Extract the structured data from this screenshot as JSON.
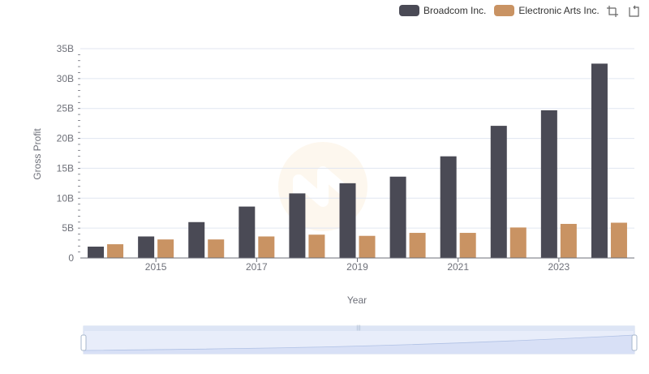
{
  "chart_data": {
    "type": "bar",
    "categories": [
      "2014",
      "2015",
      "2016",
      "2017",
      "2018",
      "2019",
      "2020",
      "2021",
      "2022",
      "2023",
      "2024"
    ],
    "x_tick_labels": [
      "2015",
      "2017",
      "2019",
      "2021",
      "2023"
    ],
    "series": [
      {
        "name": "Broadcom Inc.",
        "color": "#4a4a55",
        "values": [
          1.9,
          3.6,
          6.0,
          8.6,
          10.8,
          12.5,
          13.6,
          17.0,
          22.1,
          24.7,
          32.5
        ]
      },
      {
        "name": "Electronic Arts Inc.",
        "color": "#c99363",
        "values": [
          2.3,
          3.1,
          3.1,
          3.6,
          3.9,
          3.7,
          4.2,
          4.2,
          5.1,
          5.7,
          5.9
        ]
      }
    ],
    "ylim": [
      0,
      35
    ],
    "y_ticks": [
      0,
      5,
      10,
      15,
      20,
      25,
      30,
      35
    ],
    "y_tick_labels": [
      "0",
      "5B",
      "10B",
      "15B",
      "20B",
      "25B",
      "30B",
      "35B"
    ],
    "xlabel": "Year",
    "ylabel": "Gross Profit",
    "title": ""
  },
  "toolbox": {
    "zoom_icon": "zoom-icon",
    "restore_icon": "restore-icon"
  },
  "datazoom": {
    "slider": "data-zoom-slider"
  }
}
